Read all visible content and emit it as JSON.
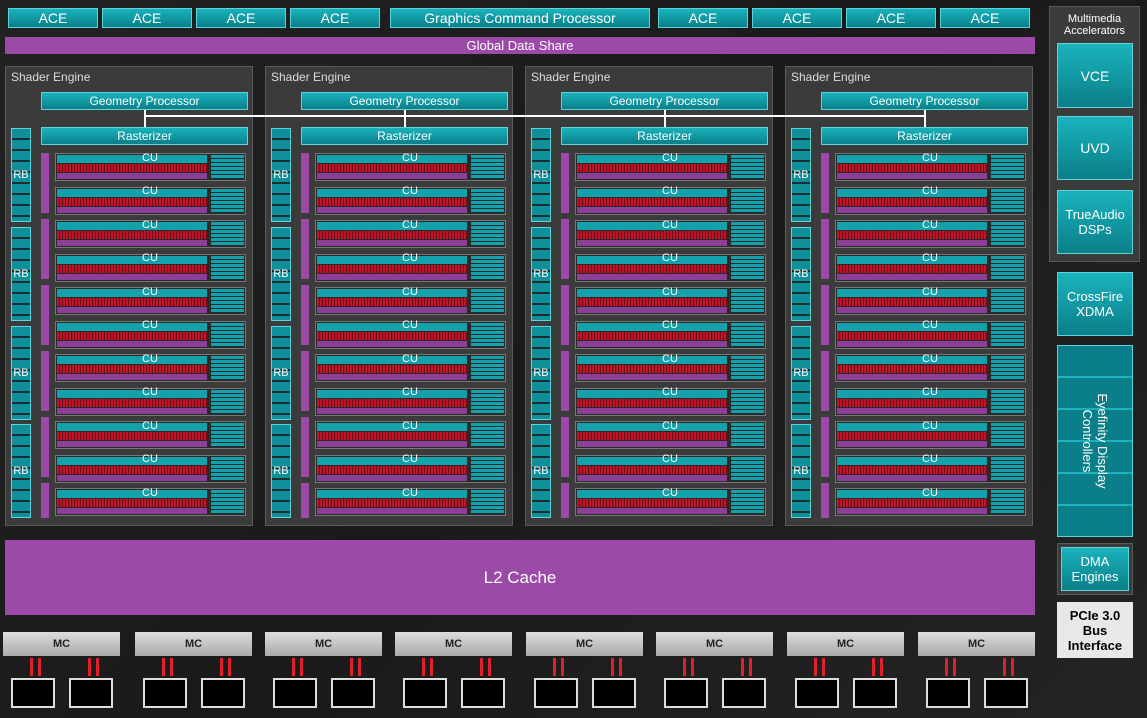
{
  "top_bar": [
    "ACE",
    "ACE",
    "ACE",
    "ACE",
    "Graphics Command Processor",
    "ACE",
    "ACE",
    "ACE",
    "ACE"
  ],
  "global_data_share": "Global Data Share",
  "shader_engines": [
    {
      "title": "Shader Engine",
      "geometry": "Geometry Processor",
      "rasterizer": "Rasterizer",
      "rbs": [
        "RB",
        "RB",
        "RB",
        "RB"
      ],
      "cus": [
        "CU",
        "CU",
        "CU",
        "CU",
        "CU",
        "CU",
        "CU",
        "CU",
        "CU",
        "CU",
        "CU"
      ]
    },
    {
      "title": "Shader Engine",
      "geometry": "Geometry Processor",
      "rasterizer": "Rasterizer",
      "rbs": [
        "RB",
        "RB",
        "RB",
        "RB"
      ],
      "cus": [
        "CU",
        "CU",
        "CU",
        "CU",
        "CU",
        "CU",
        "CU",
        "CU",
        "CU",
        "CU",
        "CU"
      ]
    },
    {
      "title": "Shader Engine",
      "geometry": "Geometry Processor",
      "rasterizer": "Rasterizer",
      "rbs": [
        "RB",
        "RB",
        "RB",
        "RB"
      ],
      "cus": [
        "CU",
        "CU",
        "CU",
        "CU",
        "CU",
        "CU",
        "CU",
        "CU",
        "CU",
        "CU",
        "CU"
      ]
    },
    {
      "title": "Shader Engine",
      "geometry": "Geometry Processor",
      "rasterizer": "Rasterizer",
      "rbs": [
        "RB",
        "RB",
        "RB",
        "RB"
      ],
      "cus": [
        "CU",
        "CU",
        "CU",
        "CU",
        "CU",
        "CU",
        "CU",
        "CU",
        "CU",
        "CU",
        "CU"
      ]
    }
  ],
  "l2_cache": "L2 Cache",
  "memory_controllers": [
    "MC",
    "MC",
    "MC",
    "MC",
    "MC",
    "MC",
    "MC",
    "MC"
  ],
  "side": {
    "multimedia": "Multimedia\nAccelerators",
    "vce": "VCE",
    "uvd": "UVD",
    "trueaudio": "TrueAudio\nDSPs",
    "crossfire": "CrossFire\nXDMA",
    "eyefinity": "Eyefinity Display\nControllers",
    "dma": "DMA\nEngines",
    "pcie": "PCIe 3.0\nBus\nInterface"
  }
}
